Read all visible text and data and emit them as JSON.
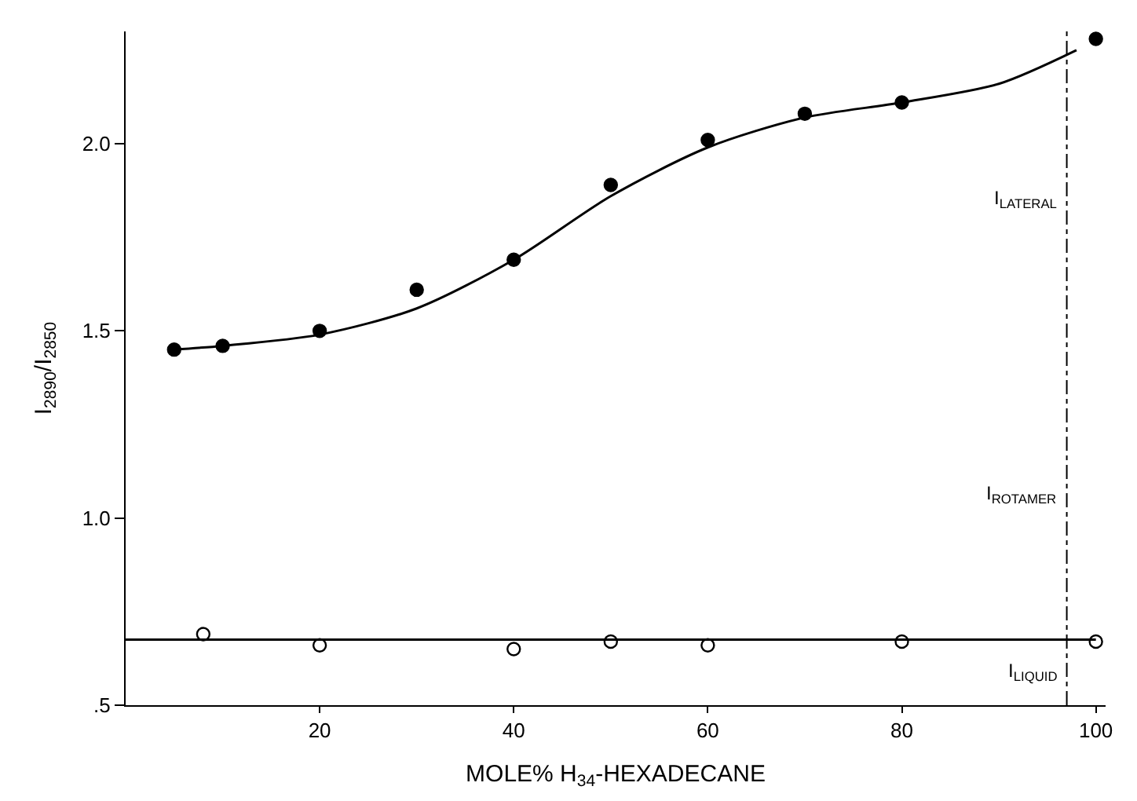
{
  "chart_data": {
    "type": "scatter",
    "xlabel": "MOLE% H$_{34}$-HEXADECANE",
    "ylabel": "I$_{2890}$/I$_{2850}$",
    "xlim": [
      0,
      101
    ],
    "ylim": [
      0.5,
      2.3
    ],
    "xticks": [
      20,
      40,
      60,
      80,
      100
    ],
    "yticks": [
      {
        "value": 0.5,
        "label": ".5"
      },
      {
        "value": 1.0,
        "label": "1.0"
      },
      {
        "value": 1.5,
        "label": "1.5"
      },
      {
        "value": 2.0,
        "label": "2.0"
      }
    ],
    "legend": false,
    "series": [
      {
        "marker": "circle",
        "color": "#000000",
        "x": [
          5,
          10,
          20,
          30,
          40,
          50,
          60,
          70,
          80,
          100
        ],
        "values": [
          1.45,
          1.46,
          1.5,
          1.61,
          1.69,
          1.89,
          2.01,
          2.08,
          2.11,
          2.28
        ]
      },
      {
        "marker": "circle",
        "color": "#ffffff",
        "x": [
          8,
          20,
          40,
          50,
          60,
          80,
          100
        ],
        "values": [
          0.69,
          0.66,
          0.65,
          0.67,
          0.66,
          0.67,
          0.67
        ]
      },
      {
        "type": "line",
        "color": "#000000",
        "x": [
          5,
          10,
          20,
          30,
          40,
          50,
          60,
          70,
          80,
          90,
          98
        ],
        "values": [
          1.45,
          1.46,
          1.49,
          1.56,
          1.69,
          1.86,
          1.99,
          2.07,
          2.11,
          2.16,
          2.25
        ]
      },
      {
        "type": "line",
        "color": "#000000",
        "x": [
          0,
          100
        ],
        "values": [
          0.675,
          0.675
        ]
      }
    ],
    "ref_lines": [
      {
        "axis": "x",
        "value": 97,
        "line_style": "dashed",
        "color": "#000000"
      }
    ],
    "annotations": [
      "I$_{LATERAL}$",
      "I$_{ROTAMER}$",
      "I$_{LIQUID}$"
    ]
  }
}
